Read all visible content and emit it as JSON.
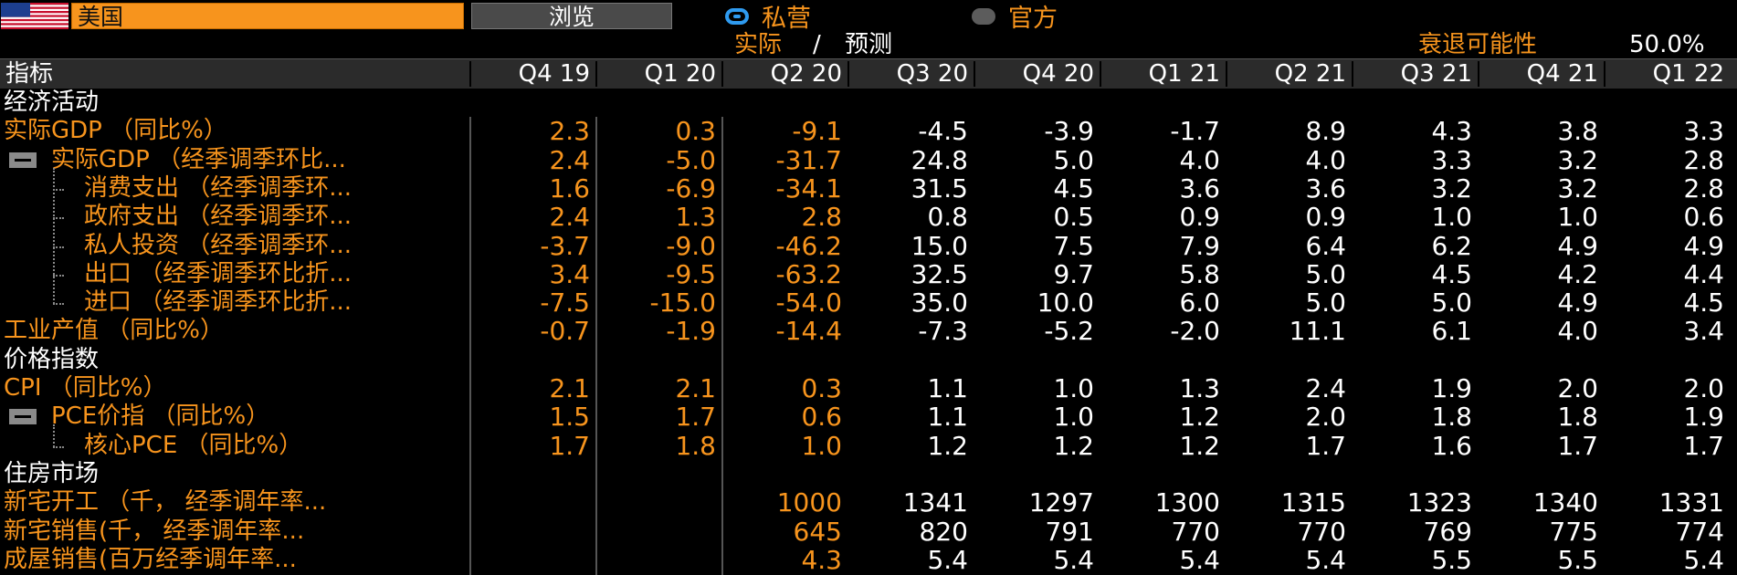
{
  "header": {
    "country": "美国",
    "browse_label": "浏览",
    "radio_private": "私营",
    "radio_official": "官方",
    "selected_radio": "private"
  },
  "subheader": {
    "actual": "实际",
    "separator": "/",
    "forecast": "预测",
    "recession_label": "衰退可能性",
    "recession_value": "50.0%"
  },
  "columns": {
    "indicator": "指标",
    "quarters": [
      "Q4 19",
      "Q1 20",
      "Q2 20",
      "Q3 20",
      "Q4 20",
      "Q1 21",
      "Q2 21",
      "Q3 21",
      "Q4 21",
      "Q1 22"
    ],
    "actual_count": 3
  },
  "rows": [
    {
      "label": "经济活动",
      "type": "section",
      "values": []
    },
    {
      "label": "实际GDP （同比%）",
      "type": "data",
      "values": [
        "2.3",
        "0.3",
        "-9.1",
        "-4.5",
        "-3.9",
        "-1.7",
        "8.9",
        "4.3",
        "3.8",
        "3.3"
      ]
    },
    {
      "label": "实际GDP （经季调季环比...",
      "type": "parent",
      "values": [
        "2.4",
        "-5.0",
        "-31.7",
        "24.8",
        "5.0",
        "4.0",
        "4.0",
        "3.3",
        "3.2",
        "2.8"
      ]
    },
    {
      "label": "消费支出 （经季调季环...",
      "type": "child",
      "values": [
        "1.6",
        "-6.9",
        "-34.1",
        "31.5",
        "4.5",
        "3.6",
        "3.6",
        "3.2",
        "3.2",
        "2.8"
      ]
    },
    {
      "label": "政府支出 （经季调季环...",
      "type": "child",
      "values": [
        "2.4",
        "1.3",
        "2.8",
        "0.8",
        "0.5",
        "0.9",
        "0.9",
        "1.0",
        "1.0",
        "0.6"
      ]
    },
    {
      "label": "私人投资 （经季调季环...",
      "type": "child",
      "values": [
        "-3.7",
        "-9.0",
        "-46.2",
        "15.0",
        "7.5",
        "7.9",
        "6.4",
        "6.2",
        "4.9",
        "4.9"
      ]
    },
    {
      "label": "出口 （经季调季环比折...",
      "type": "child",
      "values": [
        "3.4",
        "-9.5",
        "-63.2",
        "32.5",
        "9.7",
        "5.8",
        "5.0",
        "4.5",
        "4.2",
        "4.4"
      ]
    },
    {
      "label": "进口 （经季调季环比折...",
      "type": "child-last",
      "values": [
        "-7.5",
        "-15.0",
        "-54.0",
        "35.0",
        "10.0",
        "6.0",
        "5.0",
        "5.0",
        "4.9",
        "4.5"
      ]
    },
    {
      "label": "工业产值 （同比%）",
      "type": "data",
      "values": [
        "-0.7",
        "-1.9",
        "-14.4",
        "-7.3",
        "-5.2",
        "-2.0",
        "11.1",
        "6.1",
        "4.0",
        "3.4"
      ]
    },
    {
      "label": "价格指数",
      "type": "section",
      "values": []
    },
    {
      "label": "CPI （同比%）",
      "type": "data",
      "values": [
        "2.1",
        "2.1",
        "0.3",
        "1.1",
        "1.0",
        "1.3",
        "2.4",
        "1.9",
        "2.0",
        "2.0"
      ]
    },
    {
      "label": "PCE价指 （同比%）",
      "type": "parent",
      "values": [
        "1.5",
        "1.7",
        "0.6",
        "1.1",
        "1.0",
        "1.2",
        "2.0",
        "1.8",
        "1.8",
        "1.9"
      ]
    },
    {
      "label": "核心PCE （同比%）",
      "type": "child-last",
      "values": [
        "1.7",
        "1.8",
        "1.0",
        "1.2",
        "1.2",
        "1.2",
        "1.7",
        "1.6",
        "1.7",
        "1.7"
      ]
    },
    {
      "label": "住房市场",
      "type": "section",
      "values": []
    },
    {
      "label": "新宅开工 （千， 经季调年率...",
      "type": "data",
      "values": [
        "",
        "",
        "1000",
        "1341",
        "1297",
        "1300",
        "1315",
        "1323",
        "1340",
        "1331"
      ]
    },
    {
      "label": "新宅销售(千， 经季调年率...",
      "type": "data",
      "values": [
        "",
        "",
        "645",
        "820",
        "791",
        "770",
        "770",
        "769",
        "775",
        "774"
      ]
    },
    {
      "label": "成屋销售(百万经季调年率...",
      "type": "data",
      "values": [
        "",
        "",
        "4.3",
        "5.4",
        "5.4",
        "5.4",
        "5.4",
        "5.5",
        "5.5",
        "5.4"
      ]
    }
  ],
  "colors": {
    "accent_orange": "#f7941d",
    "background": "#000000",
    "header_bg": "#2b2b2b",
    "radio_blue": "#2f9bf0"
  }
}
